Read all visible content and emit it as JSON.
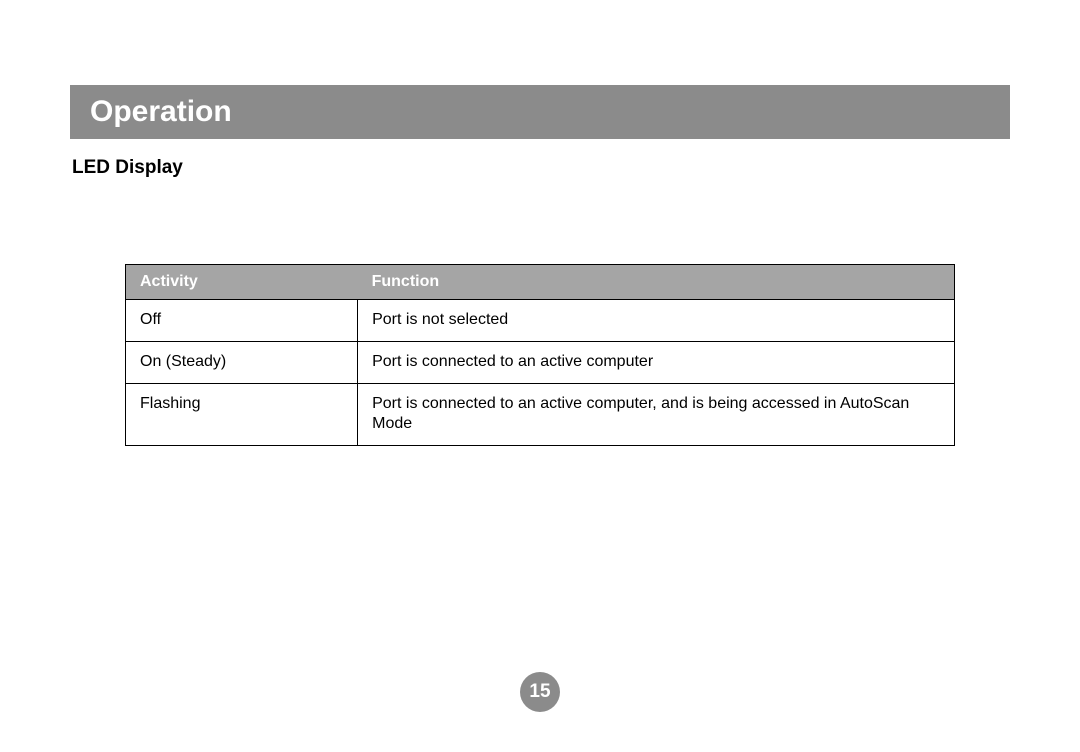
{
  "header": {
    "title": "Operation"
  },
  "section": {
    "title": "LED Display"
  },
  "table": {
    "columns": [
      "Activity",
      "Function"
    ],
    "rows": [
      {
        "activity": "Off",
        "function": "Port is not selected"
      },
      {
        "activity": "On (Steady)",
        "function": "Port is connected to an active computer"
      },
      {
        "activity": "Flashing",
        "function": "Port is connected to an active computer, and is being accessed in AutoScan Mode"
      }
    ],
    "header_bg_color": "#a5a5a5",
    "header_text_color": "#ffffff",
    "border_color": "#000000",
    "cell_text_color": "#000000",
    "col_widths": [
      "28%",
      "72%"
    ],
    "header_fontsize": 16,
    "cell_fontsize": 16
  },
  "page_number": "15",
  "colors": {
    "header_bar_bg": "#8b8b8b",
    "header_bar_text": "#ffffff",
    "section_title": "#000000",
    "page_badge_bg": "#8b8b8b",
    "page_badge_text": "#ffffff",
    "page_bg": "#ffffff"
  },
  "typography": {
    "header_title_fontsize": 30,
    "section_title_fontsize": 19,
    "page_number_fontsize": 19,
    "font_family": "Arial"
  }
}
